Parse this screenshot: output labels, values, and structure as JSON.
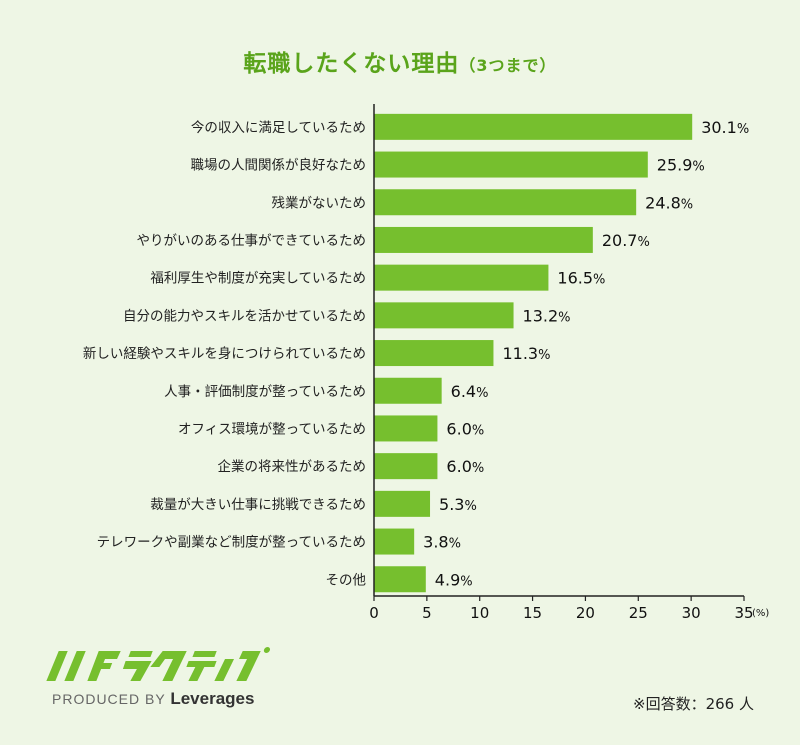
{
  "chart_data": {
    "type": "bar",
    "orientation": "horizontal",
    "title": "転職したくない理由",
    "subtitle": "（3つまで）",
    "categories": [
      "今の収入に満足しているため",
      "職場の人間関係が良好なため",
      "残業がないため",
      "やりがいのある仕事ができているため",
      "福利厚生や制度が充実しているため",
      "自分の能力やスキルを活かせているため",
      "新しい経験やスキルを身につけられているため",
      "人事・評価制度が整っているため",
      "オフィス環境が整っているため",
      "企業の将来性があるため",
      "裁量が大きい仕事に挑戦できるため",
      "テレワークや副業など制度が整っているため",
      "その他"
    ],
    "values": [
      30.1,
      25.9,
      24.8,
      20.7,
      16.5,
      13.2,
      11.3,
      6.4,
      6.0,
      6.0,
      5.3,
      3.8,
      4.9
    ],
    "value_labels": [
      "30.1",
      "25.9",
      "24.8",
      "20.7",
      "16.5",
      "13.2",
      "11.3",
      "6.4",
      "6.0",
      "6.0",
      "5.3",
      "3.8",
      "4.9"
    ],
    "value_suffix": "%",
    "xlim": [
      0,
      35
    ],
    "xticks": [
      "0",
      "5",
      "10",
      "15",
      "20",
      "25",
      "30",
      "35"
    ],
    "xunit": "(%)",
    "bar_color": "#76bf2e",
    "grid": false
  },
  "colors": {
    "background": "#eef6e5",
    "title": "#5aa41b",
    "logo": "#76bf2e"
  },
  "branding": {
    "logo_alt": "ハタラクティブ",
    "produced_by": "PRODUCED BY",
    "company": "Leverages"
  },
  "footnote": "※回答数：266 人"
}
